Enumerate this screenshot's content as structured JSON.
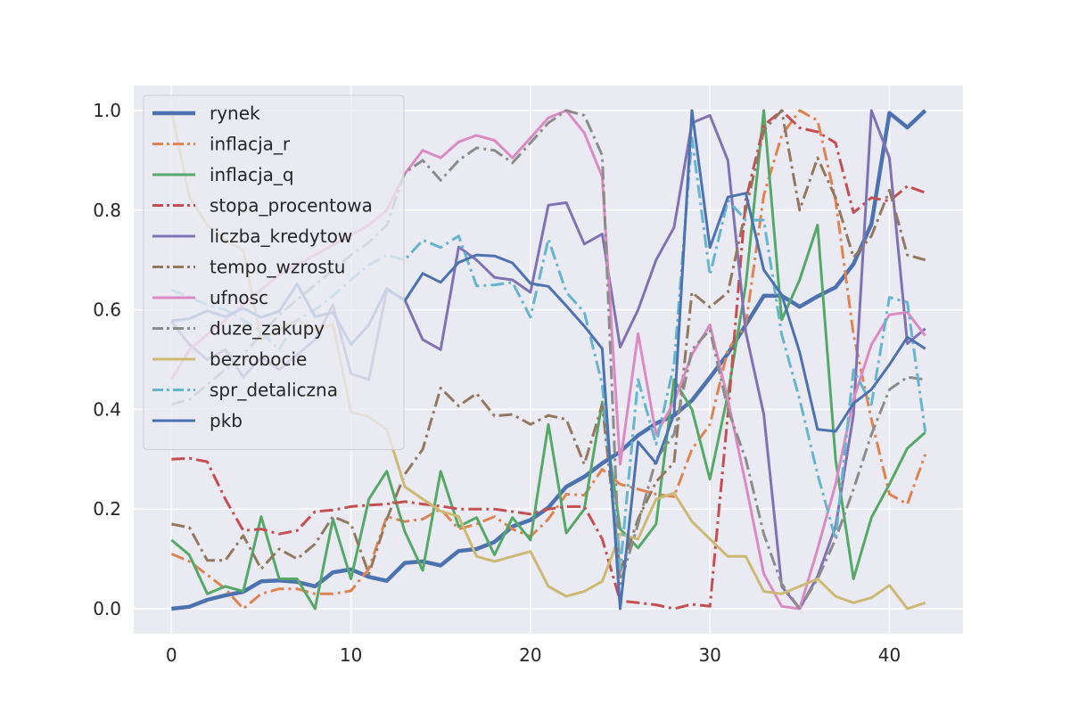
{
  "chart_data": {
    "type": "line",
    "title": "",
    "xlabel": "",
    "ylabel": "",
    "xlim": [
      -2.1,
      44.1
    ],
    "ylim": [
      -0.05,
      1.05
    ],
    "xticks": [
      0,
      10,
      20,
      30,
      40
    ],
    "yticks": [
      0.0,
      0.2,
      0.4,
      0.6,
      0.8,
      1.0
    ],
    "xtick_labels": [
      "0",
      "10",
      "20",
      "30",
      "40"
    ],
    "ytick_labels": [
      "0.0",
      "0.2",
      "0.4",
      "0.6",
      "0.8",
      "1.0"
    ],
    "grid": true,
    "legend_position": "upper-left",
    "x": [
      0,
      1,
      2,
      3,
      4,
      5,
      6,
      7,
      8,
      9,
      10,
      11,
      12,
      13,
      14,
      15,
      16,
      17,
      18,
      19,
      20,
      21,
      22,
      23,
      24,
      25,
      26,
      27,
      28,
      29,
      30,
      31,
      32,
      33,
      34,
      35,
      36,
      37,
      38,
      39,
      40,
      41,
      42
    ],
    "series": [
      {
        "name": "rynek",
        "color": "#4c72b0",
        "dash": "solid",
        "width": 4.5,
        "values": [
          0.0,
          0.004,
          0.018,
          0.027,
          0.034,
          0.055,
          0.057,
          0.054,
          0.045,
          0.073,
          0.079,
          0.064,
          0.056,
          0.092,
          0.095,
          0.087,
          0.116,
          0.12,
          0.134,
          0.165,
          0.178,
          0.203,
          0.245,
          0.265,
          0.292,
          0.315,
          0.348,
          0.372,
          0.388,
          0.418,
          0.464,
          0.512,
          0.57,
          0.628,
          0.628,
          0.606,
          0.627,
          0.645,
          0.692,
          0.772,
          0.995,
          0.966,
          1.0
        ]
      },
      {
        "name": "inflacja_r",
        "color": "#dd8452",
        "dash": "dashdot",
        "width": 3,
        "values": [
          0.11,
          0.095,
          0.068,
          0.04,
          0.0,
          0.03,
          0.04,
          0.04,
          0.03,
          0.03,
          0.036,
          0.08,
          0.185,
          0.175,
          0.18,
          0.2,
          0.16,
          0.17,
          0.185,
          0.16,
          0.145,
          0.18,
          0.23,
          0.228,
          0.28,
          0.25,
          0.24,
          0.23,
          0.225,
          0.32,
          0.37,
          0.52,
          0.57,
          0.83,
          0.95,
          1.0,
          0.98,
          0.82,
          0.55,
          0.38,
          0.23,
          0.21,
          0.31
        ]
      },
      {
        "name": "inflacja_q",
        "color": "#55a868",
        "dash": "solid",
        "width": 3,
        "values": [
          0.138,
          0.108,
          0.03,
          0.045,
          0.035,
          0.185,
          0.06,
          0.06,
          0.0,
          0.18,
          0.06,
          0.22,
          0.276,
          0.155,
          0.077,
          0.276,
          0.165,
          0.183,
          0.108,
          0.183,
          0.138,
          0.37,
          0.152,
          0.2,
          0.415,
          0.16,
          0.122,
          0.17,
          0.46,
          0.4,
          0.26,
          0.43,
          0.65,
          1.0,
          0.58,
          0.66,
          0.77,
          0.3,
          0.06,
          0.183,
          0.25,
          0.322,
          0.354
        ]
      },
      {
        "name": "stopa_procentowa",
        "color": "#c44e52",
        "dash": "dashdot",
        "width": 3,
        "values": [
          0.3,
          0.302,
          0.295,
          0.22,
          0.157,
          0.16,
          0.15,
          0.157,
          0.195,
          0.198,
          0.205,
          0.208,
          0.21,
          0.215,
          0.21,
          0.206,
          0.2,
          0.2,
          0.2,
          0.195,
          0.19,
          0.2,
          0.205,
          0.205,
          0.14,
          0.016,
          0.012,
          0.008,
          0.0,
          0.009,
          0.005,
          0.39,
          0.82,
          0.97,
          1.0,
          0.965,
          0.957,
          0.935,
          0.795,
          0.825,
          0.818,
          0.848,
          0.835
        ]
      },
      {
        "name": "liczba_kredytow",
        "color": "#8172b3",
        "dash": "solid",
        "width": 3,
        "values": [
          0.577,
          0.53,
          0.5,
          0.52,
          0.465,
          0.505,
          0.48,
          0.51,
          0.54,
          0.61,
          0.472,
          0.46,
          0.64,
          0.62,
          0.54,
          0.52,
          0.726,
          0.7,
          0.665,
          0.66,
          0.635,
          0.81,
          0.815,
          0.732,
          0.752,
          0.525,
          0.6,
          0.7,
          0.765,
          0.975,
          0.99,
          0.9,
          0.555,
          0.39,
          0.045,
          0.0,
          0.065,
          0.165,
          0.39,
          1.0,
          0.905,
          0.532,
          0.562
        ]
      },
      {
        "name": "tempo_wzrostu",
        "color": "#937860",
        "dash": "dashdot",
        "width": 3,
        "values": [
          0.17,
          0.163,
          0.097,
          0.097,
          0.147,
          0.08,
          0.12,
          0.1,
          0.13,
          0.185,
          0.17,
          0.07,
          0.18,
          0.27,
          0.32,
          0.443,
          0.407,
          0.432,
          0.387,
          0.39,
          0.37,
          0.388,
          0.38,
          0.29,
          0.41,
          0.075,
          0.18,
          0.255,
          0.293,
          0.635,
          0.605,
          0.635,
          0.8,
          0.96,
          1.0,
          0.8,
          0.905,
          0.825,
          0.705,
          0.748,
          0.84,
          0.71,
          0.7
        ]
      },
      {
        "name": "ufnosc",
        "color": "#da8bc3",
        "dash": "solid",
        "width": 3,
        "values": [
          0.46,
          0.52,
          0.55,
          0.58,
          0.61,
          0.64,
          0.67,
          0.69,
          0.71,
          0.73,
          0.75,
          0.77,
          0.8,
          0.873,
          0.92,
          0.905,
          0.937,
          0.95,
          0.94,
          0.905,
          0.945,
          0.985,
          1.0,
          0.955,
          0.867,
          0.29,
          0.552,
          0.35,
          0.415,
          0.51,
          0.57,
          0.42,
          0.25,
          0.07,
          0.005,
          0.0,
          0.12,
          0.25,
          0.42,
          0.53,
          0.59,
          0.595,
          0.548
        ]
      },
      {
        "name": "duze_zakupy",
        "color": "#8c8c8c",
        "dash": "dashdot",
        "width": 3,
        "values": [
          0.41,
          0.42,
          0.45,
          0.48,
          0.51,
          0.55,
          0.59,
          0.62,
          0.65,
          0.68,
          0.71,
          0.735,
          0.77,
          0.875,
          0.9,
          0.86,
          0.9,
          0.925,
          0.92,
          0.895,
          0.935,
          0.975,
          1.0,
          0.99,
          0.91,
          0.05,
          0.17,
          0.3,
          0.35,
          0.52,
          0.56,
          0.4,
          0.3,
          0.15,
          0.05,
          0.0,
          0.06,
          0.14,
          0.24,
          0.35,
          0.44,
          0.465,
          0.46
        ]
      },
      {
        "name": "bezrobocie",
        "color": "#ccb974",
        "dash": "solid",
        "width": 3,
        "values": [
          1.0,
          0.826,
          0.77,
          0.74,
          0.72,
          0.54,
          0.56,
          0.58,
          0.56,
          0.57,
          0.395,
          0.385,
          0.36,
          0.245,
          0.22,
          0.196,
          0.185,
          0.105,
          0.095,
          0.105,
          0.115,
          0.045,
          0.025,
          0.035,
          0.055,
          0.15,
          0.14,
          0.22,
          0.232,
          0.175,
          0.14,
          0.105,
          0.105,
          0.035,
          0.03,
          0.045,
          0.06,
          0.025,
          0.012,
          0.022,
          0.047,
          0.0,
          0.012
        ]
      },
      {
        "name": "spr_detaliczna",
        "color": "#64b5cd",
        "dash": "dashdot",
        "width": 3,
        "values": [
          0.64,
          0.625,
          0.61,
          0.6,
          0.58,
          0.555,
          0.52,
          0.58,
          0.6,
          0.628,
          0.66,
          0.69,
          0.71,
          0.7,
          0.74,
          0.725,
          0.748,
          0.648,
          0.65,
          0.655,
          0.585,
          0.742,
          0.635,
          0.595,
          0.45,
          0.08,
          0.46,
          0.33,
          0.49,
          0.945,
          0.67,
          0.82,
          0.78,
          0.78,
          0.55,
          0.42,
          0.27,
          0.14,
          0.48,
          0.41,
          0.625,
          0.615,
          0.355
        ]
      },
      {
        "name": "pkb",
        "color": "#4c72b0",
        "dash": "solid",
        "width": 3,
        "values": [
          0.578,
          0.582,
          0.598,
          0.586,
          0.603,
          0.585,
          0.597,
          0.652,
          0.586,
          0.595,
          0.53,
          0.57,
          0.643,
          0.618,
          0.673,
          0.655,
          0.695,
          0.71,
          0.708,
          0.694,
          0.653,
          0.647,
          0.608,
          0.567,
          0.522,
          0.0,
          0.335,
          0.292,
          0.39,
          1.0,
          0.725,
          0.826,
          0.834,
          0.68,
          0.63,
          0.515,
          0.36,
          0.356,
          0.412,
          0.44,
          0.49,
          0.545,
          0.522
        ]
      }
    ]
  }
}
